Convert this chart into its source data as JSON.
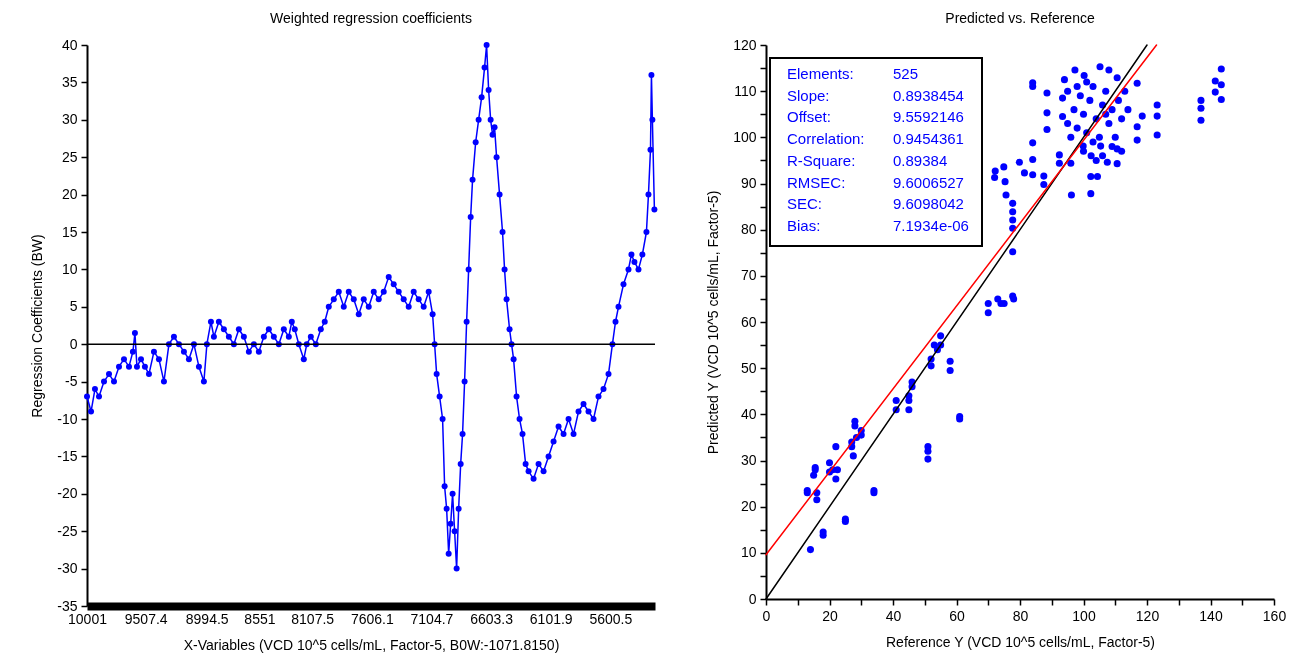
{
  "chart_data": [
    {
      "type": "line",
      "title": "Weighted regression coefficients",
      "xlabel": "X-Variables (VCD 10^5 cells/mL, Factor-5, B0W:-1071.8150)",
      "ylabel": "Regression Coefficients (BW)",
      "x": [
        10001,
        9967,
        9934,
        9900,
        9858,
        9816,
        9774,
        9732,
        9690,
        9648,
        9615,
        9598,
        9581,
        9547,
        9514,
        9480,
        9438,
        9396,
        9354,
        9312,
        9270,
        9228,
        9186,
        9144,
        9102,
        9060,
        9018,
        8993,
        8959,
        8934,
        8892,
        8850,
        8808,
        8766,
        8724,
        8682,
        8640,
        8598,
        8556,
        8514,
        8472,
        8430,
        8388,
        8346,
        8304,
        8279,
        8254,
        8220,
        8178,
        8153,
        8119,
        8077,
        8035,
        8002,
        7968,
        7926,
        7884,
        7842,
        7800,
        7758,
        7716,
        7674,
        7632,
        7590,
        7548,
        7506,
        7464,
        7422,
        7380,
        7338,
        7296,
        7254,
        7212,
        7170,
        7128,
        7095,
        7078,
        7061,
        7036,
        7011,
        6994,
        6977,
        6960,
        6943,
        6927,
        6910,
        6893,
        6876,
        6859,
        6843,
        6826,
        6809,
        6792,
        6775,
        6759,
        6733,
        6708,
        6683,
        6658,
        6641,
        6624,
        6607,
        6591,
        6574,
        6557,
        6532,
        6507,
        6490,
        6473,
        6448,
        6431,
        6414,
        6389,
        6364,
        6339,
        6313,
        6288,
        6246,
        6204,
        6162,
        6120,
        6078,
        6036,
        5994,
        5952,
        5910,
        5868,
        5826,
        5784,
        5742,
        5700,
        5658,
        5616,
        5583,
        5557,
        5532,
        5490,
        5448,
        5423,
        5398,
        5364,
        5331,
        5297,
        5280,
        5263,
        5255,
        5247,
        5230
      ],
      "series": [
        {
          "color": "#0000ff",
          "values": [
            -7,
            -9,
            -6,
            -7,
            -5,
            -4,
            -5,
            -3,
            -2,
            -3,
            -1,
            1.5,
            -3,
            -2,
            -3,
            -4,
            -1,
            -2,
            -5,
            0,
            1,
            0,
            -1,
            -2,
            0,
            -3,
            -5,
            0,
            3,
            1,
            3,
            2,
            1,
            0,
            2,
            1,
            -1,
            0,
            -1,
            1,
            2,
            1,
            0,
            2,
            1,
            3,
            2,
            0,
            -2,
            0,
            1,
            0,
            2,
            3,
            5,
            6,
            7,
            5,
            7,
            6,
            4,
            6,
            5,
            7,
            6,
            7,
            9,
            8,
            7,
            6,
            5,
            7,
            6,
            5,
            7,
            4,
            0,
            -4,
            -7,
            -10,
            -19,
            -22,
            -28,
            -24,
            -20,
            -25,
            -30,
            -22,
            -16,
            -12,
            -5,
            3,
            10,
            17,
            22,
            27,
            30,
            33,
            37,
            40,
            34,
            30,
            28,
            29,
            25,
            20,
            15,
            10,
            6,
            2,
            0,
            -2,
            -7,
            -10,
            -12,
            -16,
            -17,
            -18,
            -16,
            -17,
            -15,
            -13,
            -11,
            -12,
            -10,
            -12,
            -9,
            -8,
            -9,
            -10,
            -7,
            -6,
            -4,
            0,
            3,
            5,
            8,
            10,
            12,
            11,
            10,
            12,
            15,
            20,
            26,
            36,
            30,
            18
          ]
        }
      ],
      "marker": "circle",
      "xlim": [
        10001,
        5225
      ],
      "xticks": [
        10001,
        9507.4,
        8994.5,
        8551,
        8107.5,
        7606.1,
        7104.7,
        6603.3,
        6101.9,
        5600.5
      ],
      "ylim": [
        -35,
        40
      ],
      "yticks": [
        -35,
        -30,
        -25,
        -20,
        -15,
        -10,
        -5,
        0,
        5,
        10,
        15,
        20,
        25,
        30,
        35,
        40
      ],
      "ref_lines": [
        {
          "axis": "y",
          "value": 0,
          "color": "#000000"
        }
      ]
    },
    {
      "type": "scatter",
      "title": "Predicted vs. Reference",
      "xlabel": "Reference Y (VCD 10^5 cells/mL, Factor-5)",
      "ylabel": "Predicted Y (VCD 10^5 cells/mL, Factor-5)",
      "series": [
        {
          "type": "scatter",
          "color": "#0000ff",
          "marker": "circle",
          "x": [
            13,
            13,
            14,
            15,
            15.5,
            15.5,
            16,
            16,
            18,
            18,
            20,
            20,
            21,
            22,
            22,
            22.5,
            25,
            25,
            27,
            27,
            27.5,
            28,
            28,
            28.5,
            30,
            30,
            34,
            34,
            41,
            41,
            45,
            45,
            45,
            46,
            46,
            51,
            51,
            51,
            52,
            52,
            53,
            54,
            55,
            55,
            58,
            58,
            61,
            61,
            70,
            70,
            73,
            74,
            75,
            78,
            72,
            72.2,
            74.9,
            75.3,
            75.6,
            77.7,
            77.7,
            77.7,
            77.7,
            77.7,
            77.7,
            79.8,
            81.4,
            84,
            84,
            84,
            84,
            84,
            87.5,
            87.5,
            88.5,
            88.5,
            88.5,
            92.4,
            92.4,
            94,
            93.4,
            93.4,
            96,
            96.2,
            97.3,
            100.2,
            102.3,
            102.3,
            104.4,
            105.2,
            108,
            110.6,
            110.6,
            110.6,
            116.9,
            116.9,
            116.9,
            118.5,
            123.2,
            123.2,
            123.2,
            137,
            137,
            137,
            141.5,
            141.5,
            143.4,
            143.4,
            143.4,
            99.9,
            102.4,
            107.5,
            105.4,
            95,
            97,
            98,
            99,
            100,
            101,
            102,
            103,
            104,
            105,
            106,
            107,
            108,
            109,
            110,
            111,
            112,
            113,
            96,
            100,
            104,
            106,
            109,
            112,
            114,
            101,
            98,
            95,
            103,
            107
          ],
          "values": [
            23.5,
            23,
            10.7,
            26.8,
            28,
            28.5,
            23,
            21.5,
            14.5,
            13.8,
            29.5,
            27.5,
            28,
            26,
            33,
            28,
            17.3,
            16.8,
            34,
            33,
            31,
            38.5,
            37.5,
            35,
            36.5,
            35.5,
            23.5,
            23,
            43,
            41,
            44,
            43,
            41,
            46,
            47,
            33,
            32,
            30.3,
            52,
            50.5,
            55,
            54,
            57,
            55,
            51.5,
            49.5,
            39.5,
            39,
            64,
            62,
            65,
            64,
            64,
            65,
            91.3,
            92.7,
            93.6,
            90.4,
            87.5,
            85.7,
            83.9,
            82.1,
            80.3,
            75.2,
            65.6,
            94.6,
            92.3,
            111.8,
            111,
            98.8,
            95.2,
            91.9,
            91.6,
            89.8,
            109.6,
            105.3,
            101.7,
            94.4,
            96.2,
            112.5,
            108.5,
            104.5,
            94.4,
            87.5,
            114.6,
            113.4,
            87.8,
            91.5,
            91.5,
            115.3,
            114.6,
            112.9,
            97.5,
            94.3,
            111.7,
            99.4,
            102.3,
            104.6,
            107,
            104.6,
            100.5,
            108,
            106.3,
            103.7,
            112.2,
            109.8,
            114.8,
            111.4,
            108.2,
            98.1,
            96,
            94.6,
            98.1,
            110,
            106,
            102,
            109,
            105,
            101,
            108,
            111,
            104,
            100,
            107,
            110,
            103,
            106,
            100,
            108,
            104,
            110,
            100,
            97,
            95,
            96,
            98,
            97,
            106,
            112,
            111,
            103,
            99,
            105
          ]
        },
        {
          "type": "line",
          "color": "#000000",
          "x": [
            0,
            120
          ],
          "values": [
            0,
            120
          ]
        },
        {
          "type": "line",
          "color": "#ff0000",
          "x": [
            0,
            123
          ],
          "values": [
            9.6,
            120
          ]
        }
      ],
      "xlim": [
        0,
        160
      ],
      "xticks": [
        0,
        {
          "value": 10,
          "label": null
        },
        20,
        {
          "value": 30,
          "label": null
        },
        40,
        {
          "value": 50,
          "label": null
        },
        60,
        {
          "value": 70,
          "label": null
        },
        80,
        {
          "value": 90,
          "label": null
        },
        100,
        {
          "value": 110,
          "label": null
        },
        120,
        {
          "value": 130,
          "label": null
        },
        140,
        {
          "value": 150,
          "label": null
        },
        160
      ],
      "ylim": [
        0,
        120
      ],
      "yticks": [
        0,
        {
          "value": 5,
          "label": null
        },
        10,
        {
          "value": 15,
          "label": null
        },
        20,
        {
          "value": 25,
          "label": null
        },
        30,
        {
          "value": 35,
          "label": null
        },
        40,
        {
          "value": 45,
          "label": null
        },
        50,
        {
          "value": 55,
          "label": null
        },
        60,
        {
          "value": 65,
          "label": null
        },
        70,
        {
          "value": 75,
          "label": null
        },
        80,
        {
          "value": 85,
          "label": null
        },
        90,
        {
          "value": 95,
          "label": null
        },
        100,
        {
          "value": 105,
          "label": null
        },
        110,
        {
          "value": 115,
          "label": null
        },
        120
      ],
      "annotations": [
        "Elements:",
        "525",
        "Slope:",
        "0.8938454",
        "Offset:",
        "9.5592146",
        "Correlation:",
        "0.9454361",
        "R-Square:",
        "0.89384",
        "RMSEC:",
        "9.6006527",
        "SEC:",
        "9.6098042",
        "Bias:",
        "7.1934e-06"
      ]
    }
  ]
}
